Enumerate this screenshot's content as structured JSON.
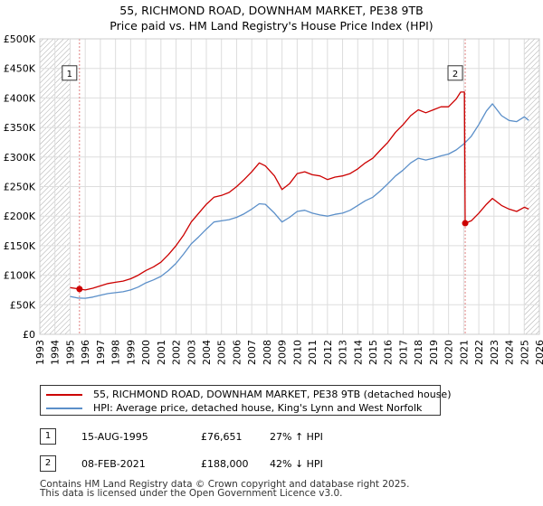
{
  "chart_data": {
    "type": "line",
    "title": "55, RICHMOND ROAD, DOWNHAM MARKET, PE38 9TB",
    "subtitle": "Price paid vs. HM Land Registry's House Price Index (HPI)",
    "xlabel": "",
    "ylabel": "",
    "xlim": [
      1993,
      2026
    ],
    "ylim": [
      0,
      500000
    ],
    "x_ticks": [
      "1993",
      "1994",
      "1995",
      "1996",
      "1997",
      "1998",
      "1999",
      "2000",
      "2001",
      "2002",
      "2003",
      "2004",
      "2005",
      "2006",
      "2007",
      "2008",
      "2009",
      "2010",
      "2011",
      "2012",
      "2013",
      "2014",
      "2015",
      "2016",
      "2017",
      "2018",
      "2019",
      "2020",
      "2021",
      "2022",
      "2023",
      "2024",
      "2025",
      "2026"
    ],
    "y_ticks": [
      {
        "value": 0,
        "label": "£0"
      },
      {
        "value": 50000,
        "label": "£50K"
      },
      {
        "value": 100000,
        "label": "£100K"
      },
      {
        "value": 150000,
        "label": "£150K"
      },
      {
        "value": 200000,
        "label": "£200K"
      },
      {
        "value": 250000,
        "label": "£250K"
      },
      {
        "value": 300000,
        "label": "£300K"
      },
      {
        "value": 350000,
        "label": "£350K"
      },
      {
        "value": 400000,
        "label": "£400K"
      },
      {
        "value": 450000,
        "label": "£450K"
      },
      {
        "value": 500000,
        "label": "£500K"
      }
    ],
    "grid": true,
    "series": [
      {
        "name": "55, RICHMOND ROAD, DOWNHAM MARKET, PE38 9TB (detached house)",
        "color": "#cc0000",
        "points": [
          [
            1995.0,
            79000
          ],
          [
            1995.62,
            76651
          ],
          [
            1996.0,
            75000
          ],
          [
            1996.5,
            78000
          ],
          [
            1997.0,
            82000
          ],
          [
            1997.5,
            86000
          ],
          [
            1998.0,
            88000
          ],
          [
            1998.5,
            90000
          ],
          [
            1999.0,
            94000
          ],
          [
            1999.5,
            100000
          ],
          [
            2000.0,
            108000
          ],
          [
            2000.5,
            114000
          ],
          [
            2001.0,
            122000
          ],
          [
            2001.5,
            135000
          ],
          [
            2002.0,
            150000
          ],
          [
            2002.5,
            168000
          ],
          [
            2003.0,
            190000
          ],
          [
            2003.5,
            205000
          ],
          [
            2004.0,
            220000
          ],
          [
            2004.5,
            232000
          ],
          [
            2005.0,
            235000
          ],
          [
            2005.5,
            240000
          ],
          [
            2006.0,
            250000
          ],
          [
            2006.5,
            262000
          ],
          [
            2007.0,
            275000
          ],
          [
            2007.5,
            290000
          ],
          [
            2007.9,
            285000
          ],
          [
            2008.5,
            268000
          ],
          [
            2009.0,
            245000
          ],
          [
            2009.5,
            255000
          ],
          [
            2010.0,
            272000
          ],
          [
            2010.5,
            275000
          ],
          [
            2011.0,
            270000
          ],
          [
            2011.5,
            268000
          ],
          [
            2012.0,
            262000
          ],
          [
            2012.5,
            266000
          ],
          [
            2013.0,
            268000
          ],
          [
            2013.5,
            272000
          ],
          [
            2014.0,
            280000
          ],
          [
            2014.5,
            290000
          ],
          [
            2015.0,
            298000
          ],
          [
            2015.5,
            312000
          ],
          [
            2016.0,
            325000
          ],
          [
            2016.5,
            342000
          ],
          [
            2017.0,
            355000
          ],
          [
            2017.5,
            370000
          ],
          [
            2018.0,
            380000
          ],
          [
            2018.5,
            375000
          ],
          [
            2019.0,
            380000
          ],
          [
            2019.5,
            385000
          ],
          [
            2020.0,
            385000
          ],
          [
            2020.5,
            398000
          ],
          [
            2020.8,
            410000
          ],
          [
            2021.05,
            410000
          ],
          [
            2021.1,
            188000
          ],
          [
            2021.5,
            192000
          ],
          [
            2022.0,
            205000
          ],
          [
            2022.5,
            220000
          ],
          [
            2022.9,
            230000
          ],
          [
            2023.5,
            218000
          ],
          [
            2024.0,
            212000
          ],
          [
            2024.5,
            208000
          ],
          [
            2025.0,
            215000
          ],
          [
            2025.3,
            212000
          ]
        ]
      },
      {
        "name": "HPI: Average price, detached house, King's Lynn and West Norfolk",
        "color": "#5b8fc9",
        "points": [
          [
            1995.0,
            64000
          ],
          [
            1995.5,
            61500
          ],
          [
            1996.0,
            61000
          ],
          [
            1996.5,
            63000
          ],
          [
            1997.0,
            66000
          ],
          [
            1997.5,
            69000
          ],
          [
            1998.0,
            70500
          ],
          [
            1998.5,
            72000
          ],
          [
            1999.0,
            75000
          ],
          [
            1999.5,
            80000
          ],
          [
            2000.0,
            87000
          ],
          [
            2000.5,
            92000
          ],
          [
            2001.0,
            98000
          ],
          [
            2001.5,
            108000
          ],
          [
            2002.0,
            120000
          ],
          [
            2002.5,
            136000
          ],
          [
            2003.0,
            153000
          ],
          [
            2003.5,
            165000
          ],
          [
            2004.0,
            178000
          ],
          [
            2004.5,
            190000
          ],
          [
            2005.0,
            192000
          ],
          [
            2005.5,
            194000
          ],
          [
            2006.0,
            198000
          ],
          [
            2006.5,
            204000
          ],
          [
            2007.0,
            212000
          ],
          [
            2007.5,
            221000
          ],
          [
            2007.9,
            220000
          ],
          [
            2008.5,
            205000
          ],
          [
            2009.0,
            190000
          ],
          [
            2009.5,
            198000
          ],
          [
            2010.0,
            208000
          ],
          [
            2010.5,
            210000
          ],
          [
            2011.0,
            205000
          ],
          [
            2011.5,
            202000
          ],
          [
            2012.0,
            200000
          ],
          [
            2012.5,
            203000
          ],
          [
            2013.0,
            205000
          ],
          [
            2013.5,
            210000
          ],
          [
            2014.0,
            218000
          ],
          [
            2014.5,
            226000
          ],
          [
            2015.0,
            232000
          ],
          [
            2015.5,
            243000
          ],
          [
            2016.0,
            255000
          ],
          [
            2016.5,
            268000
          ],
          [
            2017.0,
            278000
          ],
          [
            2017.5,
            290000
          ],
          [
            2018.0,
            298000
          ],
          [
            2018.5,
            295000
          ],
          [
            2019.0,
            298000
          ],
          [
            2019.5,
            302000
          ],
          [
            2020.0,
            305000
          ],
          [
            2020.5,
            312000
          ],
          [
            2021.0,
            322000
          ],
          [
            2021.5,
            335000
          ],
          [
            2022.0,
            355000
          ],
          [
            2022.5,
            378000
          ],
          [
            2022.9,
            390000
          ],
          [
            2023.5,
            370000
          ],
          [
            2024.0,
            362000
          ],
          [
            2024.5,
            360000
          ],
          [
            2025.0,
            368000
          ],
          [
            2025.3,
            362000
          ]
        ]
      }
    ],
    "sales": [
      {
        "id": "1",
        "x": 1995.62,
        "value": 76651
      },
      {
        "id": "2",
        "x": 2021.1,
        "value": 188000
      }
    ],
    "hatched_regions": [
      [
        1993,
        1995.0
      ],
      [
        2025.0,
        2026
      ]
    ]
  },
  "legend": {
    "property_label": "55, RICHMOND ROAD, DOWNHAM MARKET, PE38 9TB (detached house)",
    "hpi_label": "HPI: Average price, detached house, King's Lynn and West Norfolk"
  },
  "sales_table": [
    {
      "id": "1",
      "date": "15-AUG-1995",
      "price": "£76,651",
      "hpi": "27% ↑ HPI"
    },
    {
      "id": "2",
      "date": "08-FEB-2021",
      "price": "£188,000",
      "hpi": "42% ↓ HPI"
    }
  ],
  "footer": {
    "line1": "Contains HM Land Registry data © Crown copyright and database right 2025.",
    "line2": "This data is licensed under the Open Government Licence v3.0."
  },
  "colors": {
    "property": "#cc0000",
    "hpi": "#5b8fc9",
    "grid": "#dddddd",
    "hatch": "#aaaaaa"
  }
}
